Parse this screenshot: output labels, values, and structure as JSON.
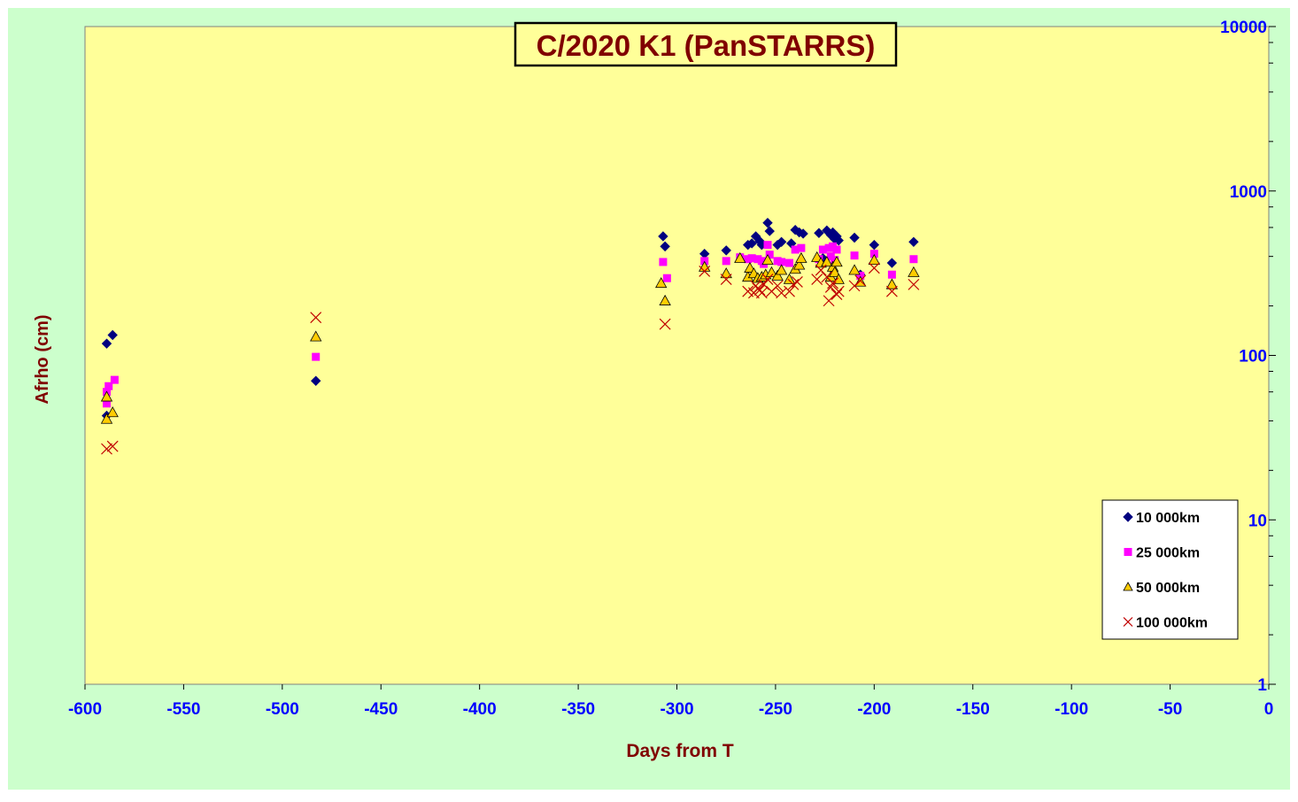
{
  "chart_data": {
    "type": "scatter",
    "title": "C/2020 K1 (PanSTARRS)",
    "xlabel": "Days from T",
    "ylabel": "Afrho (cm)",
    "xlim": [
      -600,
      0
    ],
    "ylim": [
      1,
      10000
    ],
    "y_scale": "log",
    "y_axis_side": "right",
    "grid": false,
    "legend_position": "bottom-right",
    "x_ticks": [
      "-600",
      "-550",
      "-500",
      "-450",
      "-400",
      "-350",
      "-300",
      "-250",
      "-200",
      "-150",
      "-100",
      "-50",
      "0"
    ],
    "y_ticks": [
      "1",
      "10",
      "100",
      "1000",
      "10000"
    ],
    "colors": {
      "background": "#CCFFCC",
      "plot_area": "#FFFF99",
      "title_text": "#800000",
      "axis_label": "#800000",
      "tick_label": "#0000FF"
    },
    "series": [
      {
        "name": "10 000km",
        "marker": "diamond",
        "color": "#000080",
        "points": [
          [
            -589,
            43
          ],
          [
            -589,
            118
          ],
          [
            -586,
            133
          ],
          [
            -483,
            70
          ],
          [
            -307,
            530
          ],
          [
            -306,
            460
          ],
          [
            -286,
            415
          ],
          [
            -275,
            435
          ],
          [
            -264,
            470
          ],
          [
            -262,
            480
          ],
          [
            -260,
            530
          ],
          [
            -258,
            495
          ],
          [
            -257,
            470
          ],
          [
            -254,
            640
          ],
          [
            -253,
            570
          ],
          [
            -249,
            470
          ],
          [
            -247,
            490
          ],
          [
            -242,
            480
          ],
          [
            -240,
            580
          ],
          [
            -238,
            560
          ],
          [
            -236,
            550
          ],
          [
            -228,
            555
          ],
          [
            -226,
            390
          ],
          [
            -224,
            575
          ],
          [
            -222,
            540
          ],
          [
            -221,
            560
          ],
          [
            -220,
            510
          ],
          [
            -219,
            530
          ],
          [
            -218,
            500
          ],
          [
            -210,
            520
          ],
          [
            -207,
            310
          ],
          [
            -200,
            470
          ],
          [
            -191,
            365
          ],
          [
            -180,
            490
          ]
        ]
      },
      {
        "name": "25 000km",
        "marker": "square",
        "color": "#FF00FF",
        "points": [
          [
            -589,
            51
          ],
          [
            -589,
            60
          ],
          [
            -588,
            65
          ],
          [
            -585,
            71
          ],
          [
            -483,
            98
          ],
          [
            -307,
            370
          ],
          [
            -305,
            295
          ],
          [
            -286,
            375
          ],
          [
            -275,
            375
          ],
          [
            -268,
            395
          ],
          [
            -264,
            385
          ],
          [
            -262,
            390
          ],
          [
            -259,
            385
          ],
          [
            -257,
            375
          ],
          [
            -256,
            360
          ],
          [
            -254,
            470
          ],
          [
            -253,
            410
          ],
          [
            -249,
            375
          ],
          [
            -247,
            370
          ],
          [
            -243,
            365
          ],
          [
            -240,
            440
          ],
          [
            -237,
            450
          ],
          [
            -228,
            385
          ],
          [
            -226,
            440
          ],
          [
            -223,
            450
          ],
          [
            -222,
            400
          ],
          [
            -221,
            460
          ],
          [
            -220,
            380
          ],
          [
            -219,
            440
          ],
          [
            -210,
            405
          ],
          [
            -207,
            305
          ],
          [
            -200,
            415
          ],
          [
            -191,
            310
          ],
          [
            -180,
            385
          ]
        ]
      },
      {
        "name": "50 000km",
        "marker": "triangle",
        "color": "#FFCC00",
        "points": [
          [
            -589,
            41
          ],
          [
            -589,
            56
          ],
          [
            -586,
            45
          ],
          [
            -483,
            130
          ],
          [
            -308,
            275
          ],
          [
            -306,
            215
          ],
          [
            -286,
            345
          ],
          [
            -275,
            315
          ],
          [
            -268,
            390
          ],
          [
            -264,
            300
          ],
          [
            -263,
            340
          ],
          [
            -261,
            315
          ],
          [
            -259,
            295
          ],
          [
            -257,
            300
          ],
          [
            -255,
            310
          ],
          [
            -254,
            380
          ],
          [
            -252,
            320
          ],
          [
            -249,
            305
          ],
          [
            -247,
            330
          ],
          [
            -243,
            290
          ],
          [
            -240,
            335
          ],
          [
            -238,
            355
          ],
          [
            -237,
            390
          ],
          [
            -229,
            395
          ],
          [
            -227,
            365
          ],
          [
            -224,
            370
          ],
          [
            -222,
            300
          ],
          [
            -221,
            345
          ],
          [
            -220,
            320
          ],
          [
            -219,
            370
          ],
          [
            -218,
            290
          ],
          [
            -210,
            330
          ],
          [
            -207,
            280
          ],
          [
            -200,
            380
          ],
          [
            -191,
            270
          ],
          [
            -180,
            320
          ]
        ]
      },
      {
        "name": "100 000km",
        "marker": "cross",
        "color": "#C00000",
        "points": [
          [
            -589,
            27
          ],
          [
            -586,
            28
          ],
          [
            -483,
            170
          ],
          [
            -306,
            155
          ],
          [
            -286,
            325
          ],
          [
            -275,
            290
          ],
          [
            -264,
            245
          ],
          [
            -261,
            240
          ],
          [
            -260,
            265
          ],
          [
            -259,
            255
          ],
          [
            -258,
            250
          ],
          [
            -257,
            240
          ],
          [
            -256,
            270
          ],
          [
            -254,
            290
          ],
          [
            -252,
            245
          ],
          [
            -249,
            265
          ],
          [
            -247,
            240
          ],
          [
            -243,
            245
          ],
          [
            -241,
            270
          ],
          [
            -239,
            280
          ],
          [
            -229,
            290
          ],
          [
            -227,
            330
          ],
          [
            -224,
            300
          ],
          [
            -223,
            215
          ],
          [
            -222,
            260
          ],
          [
            -221,
            275
          ],
          [
            -219,
            235
          ],
          [
            -218,
            245
          ],
          [
            -210,
            265
          ],
          [
            -207,
            285
          ],
          [
            -200,
            340
          ],
          [
            -191,
            245
          ],
          [
            -180,
            270
          ]
        ]
      }
    ]
  }
}
